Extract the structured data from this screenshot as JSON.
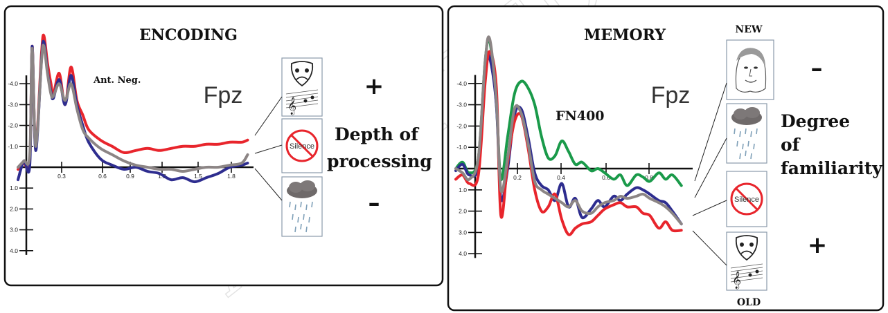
{
  "colors": {
    "red": "#e8252c",
    "blue": "#2e2d8f",
    "gray": "#8c8585",
    "green": "#1a9a4a"
  },
  "chart_data": [
    {
      "type": "line",
      "title": "ENCODING",
      "electrode": "Fpz",
      "annotation": "Ant. Neg.",
      "x_ticks": [
        "0.3",
        "0.6",
        "0.9",
        "1.2",
        "1.5",
        "1.8"
      ],
      "y_ticks": [
        "-4.0",
        "-3.0",
        "-2.0",
        "-1.0",
        "1.0",
        "2.0",
        "3.0",
        "4.0"
      ],
      "xlim": [
        0,
        2.0
      ],
      "ylim": [
        4.0,
        -6.5
      ],
      "y_inverted": true,
      "series": [
        {
          "color_key": "red",
          "x": [
            0,
            0.05,
            0.1,
            0.12,
            0.15,
            0.2,
            0.22,
            0.25,
            0.28,
            0.3,
            0.35,
            0.4,
            0.45,
            0.5,
            0.55,
            0.6,
            0.7,
            0.8,
            0.9,
            1.0,
            1.1,
            1.2,
            1.3,
            1.4,
            1.5,
            1.6,
            1.7,
            1.8,
            1.9,
            1.95
          ],
          "y": [
            0.1,
            -0.2,
            -0.3,
            -5.8,
            -1.0,
            -5.5,
            -6.3,
            -5.0,
            -4.0,
            -3.5,
            -4.5,
            -3.0,
            -4.8,
            -3.2,
            -2.5,
            -1.8,
            -1.3,
            -1.0,
            -0.7,
            -0.8,
            -0.9,
            -0.8,
            -0.9,
            -1.0,
            -1.0,
            -1.1,
            -1.1,
            -1.2,
            -1.2,
            -1.3
          ]
        },
        {
          "color_key": "blue",
          "x": [
            0,
            0.05,
            0.1,
            0.12,
            0.15,
            0.2,
            0.22,
            0.25,
            0.28,
            0.3,
            0.35,
            0.4,
            0.45,
            0.5,
            0.55,
            0.6,
            0.7,
            0.8,
            0.9,
            1.0,
            1.1,
            1.2,
            1.3,
            1.4,
            1.5,
            1.6,
            1.7,
            1.8,
            1.9,
            1.95
          ],
          "y": [
            0.6,
            -0.3,
            -0.1,
            -5.8,
            -0.8,
            -5.2,
            -6.0,
            -4.6,
            -3.6,
            -3.3,
            -4.2,
            -3.0,
            -4.4,
            -3.0,
            -2.0,
            -1.2,
            -0.4,
            -0.1,
            0.1,
            0.0,
            0.2,
            0.3,
            0.6,
            0.5,
            0.7,
            0.5,
            0.3,
            0.0,
            -0.1,
            -0.2
          ]
        },
        {
          "color_key": "gray",
          "x": [
            0,
            0.05,
            0.1,
            0.12,
            0.15,
            0.2,
            0.22,
            0.25,
            0.28,
            0.3,
            0.35,
            0.4,
            0.45,
            0.5,
            0.55,
            0.6,
            0.7,
            0.8,
            0.9,
            1.0,
            1.1,
            1.2,
            1.3,
            1.4,
            1.5,
            1.6,
            1.7,
            1.8,
            1.9,
            1.95
          ],
          "y": [
            0.0,
            -0.3,
            -0.6,
            -5.7,
            -1.0,
            -5.1,
            -5.8,
            -4.5,
            -3.5,
            -3.4,
            -4.0,
            -3.2,
            -4.0,
            -2.8,
            -1.8,
            -1.4,
            -0.9,
            -0.6,
            -0.3,
            -0.1,
            0.0,
            0.1,
            0.1,
            0.2,
            0.1,
            0.0,
            0.0,
            -0.1,
            -0.2,
            -0.6
          ]
        }
      ],
      "side_labels": {
        "plus": "+",
        "minus": "–",
        "text_line1": "Depth of",
        "text_line2": "processing"
      },
      "icons": [
        "theater-mask-music-icon",
        "silence-icon",
        "rain-cloud-icon"
      ]
    },
    {
      "type": "line",
      "title": "MEMORY",
      "electrode": "Fpz",
      "annotation": "FN400",
      "x_ticks": [
        "0.2",
        "0.4",
        "0.6",
        "0.8"
      ],
      "y_ticks": [
        "-4.0",
        "-3.0",
        "-2.0",
        "-1.0",
        "1.0",
        "2.0",
        "3.0",
        "4.0"
      ],
      "xlim": [
        0,
        1.05
      ],
      "ylim": [
        4.0,
        -6.5
      ],
      "y_inverted": true,
      "series": [
        {
          "color_key": "green",
          "x": [
            0,
            0.03,
            0.06,
            0.1,
            0.13,
            0.15,
            0.18,
            0.2,
            0.23,
            0.26,
            0.29,
            0.32,
            0.35,
            0.38,
            0.41,
            0.44,
            0.47,
            0.5,
            0.53,
            0.56,
            0.6,
            0.63,
            0.66,
            0.7,
            0.73,
            0.76,
            0.8,
            0.83,
            0.86,
            0.9,
            0.93,
            0.96,
            1.0
          ],
          "y": [
            0.0,
            -0.3,
            0.2,
            -0.5,
            -5.0,
            -6.0,
            -3.0,
            0.5,
            -1.5,
            -3.5,
            -4.1,
            -3.8,
            -3.0,
            -1.5,
            -0.5,
            -0.6,
            -1.3,
            -0.8,
            -0.2,
            -0.3,
            0.1,
            0.0,
            0.2,
            0.5,
            0.3,
            0.8,
            0.3,
            0.4,
            0.6,
            0.2,
            0.5,
            0.3,
            0.8
          ]
        },
        {
          "color_key": "blue",
          "x": [
            0,
            0.03,
            0.06,
            0.1,
            0.13,
            0.15,
            0.18,
            0.2,
            0.23,
            0.26,
            0.29,
            0.32,
            0.35,
            0.38,
            0.41,
            0.44,
            0.47,
            0.5,
            0.53,
            0.56,
            0.6,
            0.63,
            0.66,
            0.7,
            0.73,
            0.76,
            0.8,
            0.83,
            0.86,
            0.9,
            0.93,
            0.96,
            1.0
          ],
          "y": [
            0.1,
            -0.2,
            0.3,
            -0.2,
            -4.8,
            -5.2,
            -3.0,
            1.4,
            0.0,
            -2.5,
            -2.8,
            -1.5,
            0.2,
            0.8,
            1.0,
            1.5,
            0.7,
            1.8,
            1.4,
            2.3,
            1.9,
            1.5,
            1.8,
            1.3,
            1.5,
            1.2,
            0.9,
            1.0,
            1.2,
            1.5,
            1.6,
            2.0,
            2.6
          ]
        },
        {
          "color_key": "red",
          "x": [
            0,
            0.03,
            0.06,
            0.1,
            0.13,
            0.15,
            0.18,
            0.2,
            0.23,
            0.26,
            0.29,
            0.32,
            0.35,
            0.38,
            0.41,
            0.44,
            0.47,
            0.5,
            0.53,
            0.56,
            0.6,
            0.63,
            0.66,
            0.7,
            0.73,
            0.76,
            0.8,
            0.83,
            0.86,
            0.9,
            0.93,
            0.96,
            1.0
          ],
          "y": [
            0.5,
            0.3,
            0.7,
            0.3,
            -4.0,
            -5.5,
            -3.8,
            2.2,
            -0.3,
            -2.2,
            -2.5,
            -1.0,
            1.0,
            2.0,
            1.8,
            1.2,
            2.4,
            3.1,
            2.8,
            2.6,
            2.5,
            2.2,
            1.9,
            1.7,
            1.6,
            1.8,
            1.8,
            2.1,
            2.2,
            2.8,
            2.5,
            2.9,
            2.9
          ]
        },
        {
          "color_key": "gray",
          "x": [
            0,
            0.03,
            0.06,
            0.1,
            0.13,
            0.15,
            0.18,
            0.2,
            0.23,
            0.26,
            0.29,
            0.32,
            0.35,
            0.38,
            0.41,
            0.44,
            0.47,
            0.5,
            0.53,
            0.56,
            0.6,
            0.63,
            0.66,
            0.7,
            0.73,
            0.76,
            0.8,
            0.83,
            0.86,
            0.9,
            0.93,
            0.96,
            1.0
          ],
          "y": [
            0.0,
            0.2,
            0.5,
            -0.5,
            -5.0,
            -6.1,
            -3.2,
            1.0,
            -0.5,
            -2.8,
            -2.6,
            -1.2,
            0.6,
            1.0,
            1.2,
            1.4,
            1.6,
            1.8,
            1.5,
            2.0,
            2.1,
            1.8,
            1.6,
            1.5,
            1.3,
            1.4,
            1.3,
            1.2,
            1.4,
            1.6,
            1.8,
            2.1,
            2.6
          ]
        }
      ],
      "side_labels": {
        "top": "NEW",
        "bottom": "OLD",
        "minus": "–",
        "plus": "+",
        "text_line1": "Degree",
        "text_line2": "of",
        "text_line3": "familiarity"
      },
      "icons": [
        "face-portrait-icon",
        "rain-cloud-icon",
        "silence-icon",
        "theater-mask-music-icon"
      ]
    }
  ],
  "silence_label": "Silence",
  "watermark": "ACCEPTED MANUSCRIPT"
}
